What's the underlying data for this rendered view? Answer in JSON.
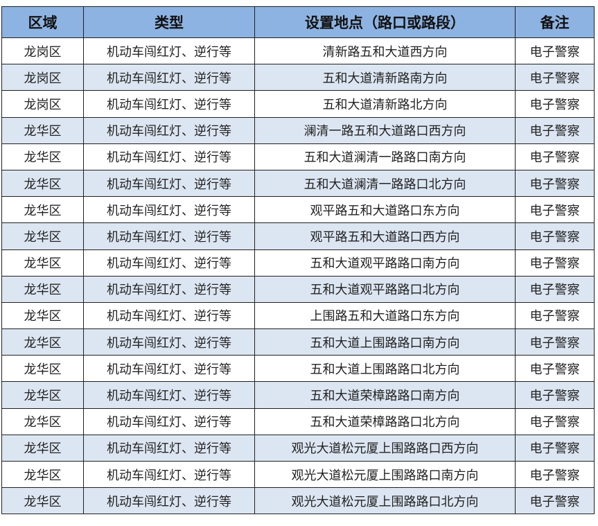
{
  "table": {
    "headers": [
      "区域",
      "类型",
      "设置地点（路口或路段）",
      "备注"
    ],
    "colors": {
      "header_bg": "#8db3e2",
      "alt_row_bg": "#dce6f2",
      "border": "#1f1f1f"
    },
    "rows": [
      [
        "龙岗区",
        "机动车闯红灯、逆行等",
        "清新路五和大道西方向",
        "电子警察"
      ],
      [
        "龙岗区",
        "机动车闯红灯、逆行等",
        "五和大道清新路南方向",
        "电子警察"
      ],
      [
        "龙岗区",
        "机动车闯红灯、逆行等",
        "五和大道清新路北方向",
        "电子警察"
      ],
      [
        "龙华区",
        "机动车闯红灯、逆行等",
        "澜清一路五和大道路口西方向",
        "电子警察"
      ],
      [
        "龙华区",
        "机动车闯红灯、逆行等",
        "五和大道澜清一路路口南方向",
        "电子警察"
      ],
      [
        "龙华区",
        "机动车闯红灯、逆行等",
        "五和大道澜清一路路口北方向",
        "电子警察"
      ],
      [
        "龙华区",
        "机动车闯红灯、逆行等",
        "观平路五和大道路口东方向",
        "电子警察"
      ],
      [
        "龙华区",
        "机动车闯红灯、逆行等",
        "观平路五和大道路口西方向",
        "电子警察"
      ],
      [
        "龙华区",
        "机动车闯红灯、逆行等",
        "五和大道观平路路口南方向",
        "电子警察"
      ],
      [
        "龙华区",
        "机动车闯红灯、逆行等",
        "五和大道观平路路口北方向",
        "电子警察"
      ],
      [
        "龙华区",
        "机动车闯红灯、逆行等",
        "上围路五和大道路口东方向",
        "电子警察"
      ],
      [
        "龙华区",
        "机动车闯红灯、逆行等",
        "五和大道上围路路口南方向",
        "电子警察"
      ],
      [
        "龙华区",
        "机动车闯红灯、逆行等",
        "五和大道上围路路口北方向",
        "电子警察"
      ],
      [
        "龙华区",
        "机动车闯红灯、逆行等",
        "五和大道荣樟路路口南方向",
        "电子警察"
      ],
      [
        "龙华区",
        "机动车闯红灯、逆行等",
        "五和大道荣樟路路口北方向",
        "电子警察"
      ],
      [
        "龙华区",
        "机动车闯红灯、逆行等",
        "观光大道松元厦上围路路口西方向",
        "电子警察"
      ],
      [
        "龙华区",
        "机动车闯红灯、逆行等",
        "观光大道松元厦上围路路口南方向",
        "电子警察"
      ],
      [
        "龙华区",
        "机动车闯红灯、逆行等",
        "观光大道松元厦上围路路口北方向",
        "电子警察"
      ]
    ]
  }
}
